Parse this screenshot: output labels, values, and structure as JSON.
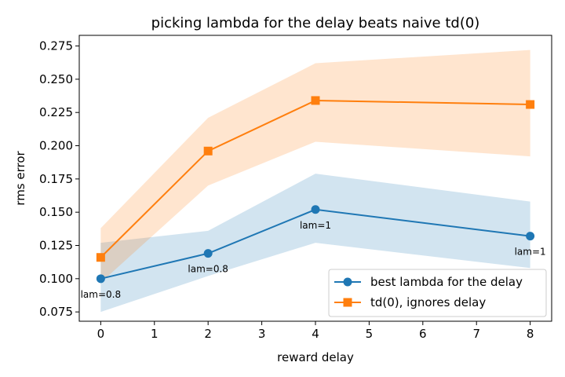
{
  "chart_data": {
    "type": "line",
    "title": "picking lambda for the delay beats naive td(0)",
    "xlabel": "reward delay",
    "ylabel": "rms error",
    "xlim": [
      -0.4,
      8.4
    ],
    "ylim": [
      0.068,
      0.283
    ],
    "xticks": [
      0,
      1,
      2,
      3,
      4,
      5,
      6,
      7,
      8
    ],
    "xtick_labels": [
      "0",
      "1",
      "2",
      "3",
      "4",
      "5",
      "6",
      "7",
      "8"
    ],
    "yticks": [
      0.075,
      0.1,
      0.125,
      0.15,
      0.175,
      0.2,
      0.225,
      0.25,
      0.275
    ],
    "ytick_labels": [
      "0.075",
      "0.100",
      "0.125",
      "0.150",
      "0.175",
      "0.200",
      "0.225",
      "0.250",
      "0.275"
    ],
    "grid": false,
    "legend_position": "lower-right",
    "x": [
      0,
      2,
      4,
      8
    ],
    "series": [
      {
        "name": "best lambda for the delay",
        "color": "#1f77b4",
        "marker": "circle",
        "values": [
          0.1,
          0.119,
          0.152,
          0.132
        ],
        "band_lower": [
          0.075,
          0.102,
          0.127,
          0.108
        ],
        "band_upper": [
          0.127,
          0.136,
          0.179,
          0.158
        ],
        "band_color": "#1f77b4"
      },
      {
        "name": "td(0), ignores delay",
        "color": "#ff7f0e",
        "marker": "square",
        "values": [
          0.116,
          0.196,
          0.234,
          0.231
        ],
        "band_lower": [
          0.097,
          0.17,
          0.203,
          0.192
        ],
        "band_upper": [
          0.138,
          0.221,
          0.262,
          0.272
        ],
        "band_color": "#ff7f0e"
      }
    ],
    "annotations": [
      {
        "text": "lam=0.8",
        "x": 0,
        "y": 0.1
      },
      {
        "text": "lam=0.8",
        "x": 2,
        "y": 0.119
      },
      {
        "text": "lam=1",
        "x": 4,
        "y": 0.152
      },
      {
        "text": "lam=1",
        "x": 8,
        "y": 0.132
      }
    ]
  }
}
